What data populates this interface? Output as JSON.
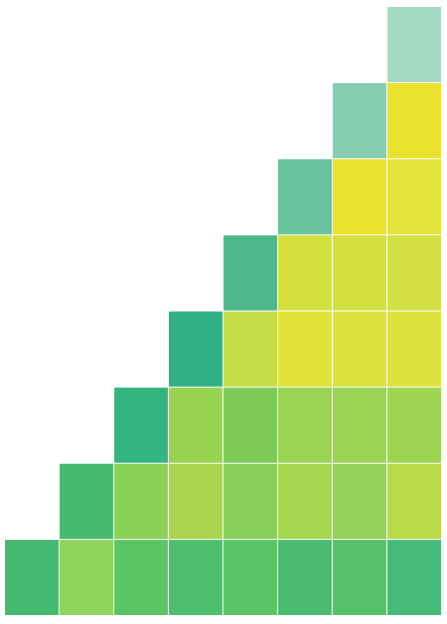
{
  "chart_data": {
    "type": "heatmap",
    "z": [
      [
        null,
        null,
        null,
        null,
        null,
        null,
        null,
        1
      ],
      [
        null,
        null,
        null,
        null,
        null,
        null,
        1,
        0.95
      ],
      [
        null,
        null,
        null,
        null,
        null,
        1,
        0.95,
        0.9
      ],
      [
        null,
        null,
        null,
        null,
        1,
        0.85,
        0.85,
        0.85
      ],
      [
        null,
        null,
        null,
        1,
        0.8,
        0.9,
        0.88,
        0.88
      ],
      [
        null,
        null,
        1,
        0.6,
        0.5,
        0.6,
        0.62,
        0.63
      ],
      [
        null,
        1,
        0.55,
        0.68,
        0.57,
        0.66,
        0.6,
        0.74
      ],
      [
        1,
        0.58,
        0.4,
        0.33,
        0.38,
        0.3,
        0.37,
        0.3
      ]
    ],
    "colors": [
      [
        null,
        null,
        null,
        null,
        null,
        null,
        null,
        "#a3d9c3"
      ],
      [
        null,
        null,
        null,
        null,
        null,
        null,
        "#85ccb0",
        "#ebe22e"
      ],
      [
        null,
        null,
        null,
        null,
        null,
        "#66c39e",
        "#ebe22e",
        "#e2e43a"
      ],
      [
        null,
        null,
        null,
        null,
        "#4db78b",
        "#d4e03e",
        "#d3e03f",
        "#d3df42"
      ],
      [
        null,
        null,
        null,
        "#2fb183",
        "#c4dc45",
        "#dfe33a",
        "#dbe23d",
        "#dce23c"
      ],
      [
        null,
        null,
        "#34b47e",
        "#98d350",
        "#7ccb58",
        "#98d353",
        "#9bd454",
        "#9dd552"
      ],
      [
        null,
        "#46bb70",
        "#8ad156",
        "#a9d64d",
        "#87cf57",
        "#a6d54f",
        "#92d256",
        "#b7da48"
      ],
      [
        "#45bb72",
        "#8ed35a",
        "#5cc563",
        "#4ebf6c",
        "#59c565",
        "#49bb6f",
        "#56c268",
        "#45bb77"
      ]
    ]
  }
}
